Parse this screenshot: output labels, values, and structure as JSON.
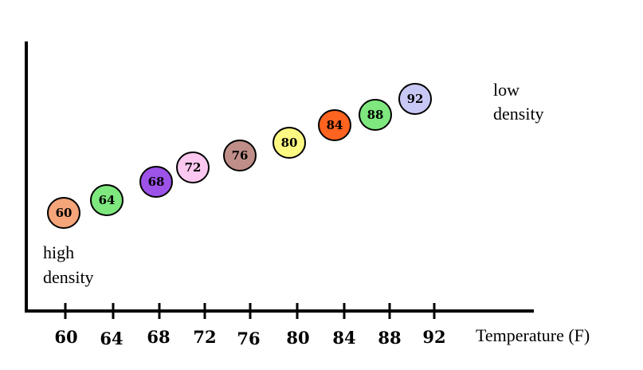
{
  "chart_data": {
    "type": "scatter",
    "title": "",
    "xlabel": "Temperature (F)",
    "ylabel": "",
    "x_ticks": [
      "60",
      "64",
      "68",
      "72",
      "76",
      "80",
      "84",
      "88",
      "92"
    ],
    "points": [
      {
        "label": "60",
        "x": 60,
        "color": "#f5a57a"
      },
      {
        "label": "64",
        "x": 64,
        "color": "#7ee87e"
      },
      {
        "label": "68",
        "x": 68,
        "color": "#9d52e8"
      },
      {
        "label": "72",
        "x": 72,
        "color": "#fcc8f0"
      },
      {
        "label": "76",
        "x": 76,
        "color": "#c08e88"
      },
      {
        "label": "80",
        "x": 80,
        "color": "#fdfa83"
      },
      {
        "label": "84",
        "x": 84,
        "color": "#ff6320"
      },
      {
        "label": "88",
        "x": 88,
        "color": "#7ee87e"
      },
      {
        "label": "92",
        "x": 92,
        "color": "#c8c8f5"
      }
    ],
    "annotations": {
      "low": [
        "low",
        "density"
      ],
      "high": [
        "high",
        "density"
      ]
    },
    "grid": false,
    "legend": "none"
  }
}
